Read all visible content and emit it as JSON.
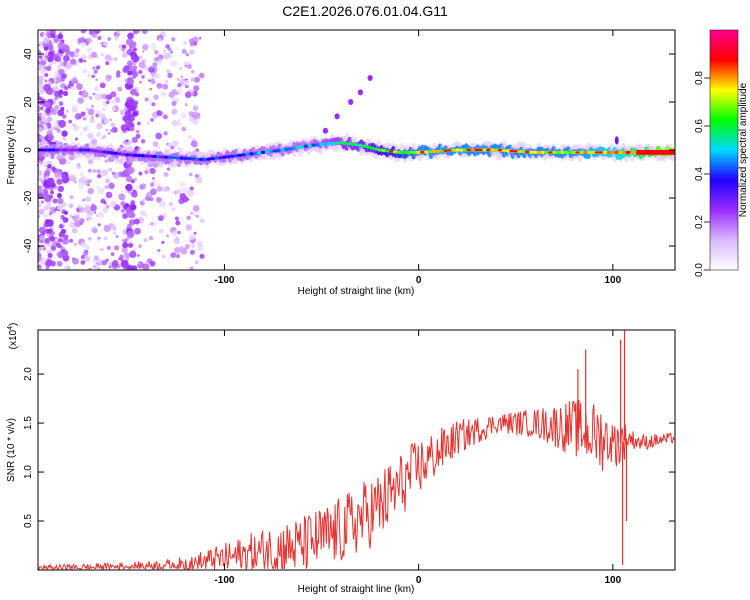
{
  "title": "C2E1.2026.076.01.04.G11",
  "chart_data": [
    {
      "type": "heatmap",
      "name": "spectrogram",
      "xlabel": "Height of straight line (km)",
      "ylabel": "Frequency (Hz)",
      "xlim": [
        -196,
        132
      ],
      "ylim": [
        -50,
        50
      ],
      "xticks": [
        -100,
        0,
        100
      ],
      "yticks": [
        -40,
        -20,
        0,
        20,
        40
      ],
      "colorbar": {
        "label": "Normalized spectral amplitude",
        "range": [
          0.0,
          1.0
        ],
        "ticks": [
          "0.0",
          "0.2",
          "0.4",
          "0.6",
          "0.8"
        ],
        "tick_values": [
          0.0,
          0.2,
          0.4,
          0.6,
          0.8
        ],
        "colors": [
          "#ffffff",
          "#d9b8ff",
          "#9a2cff",
          "#2200ff",
          "#00d8ff",
          "#00ff00",
          "#ffff00",
          "#ff0000",
          "#ff0090"
        ]
      },
      "ridge": {
        "x": [
          -190,
          -170,
          -150,
          -130,
          -110,
          -90,
          -70,
          -55,
          -40,
          -30,
          -20,
          -10,
          0,
          20,
          40,
          60,
          80,
          100,
          115,
          132
        ],
        "freq": [
          0,
          0,
          -2,
          -3,
          -4,
          -2,
          0,
          2,
          3,
          2,
          0,
          -1,
          -1,
          0,
          0,
          -1,
          -1,
          -1,
          -1,
          -1
        ],
        "amplitude": [
          0.3,
          0.3,
          0.3,
          0.35,
          0.35,
          0.4,
          0.45,
          0.45,
          0.5,
          0.55,
          0.6,
          0.65,
          0.7,
          0.7,
          0.7,
          0.7,
          0.7,
          0.75,
          0.85,
          0.95
        ]
      },
      "harmonic": {
        "x": [
          -48,
          -42,
          -35,
          -30,
          -25
        ],
        "freq": [
          8,
          14,
          20,
          24,
          30
        ]
      }
    },
    {
      "type": "line",
      "name": "snr",
      "xlabel": "Height of straight line (km)",
      "ylabel": "SNR (10 * v/v)",
      "scale_label": "(x10",
      "scale_exp": "4",
      "scale_close": ")",
      "xlim": [
        -196,
        132
      ],
      "ylim": [
        0,
        2.45
      ],
      "xticks": [
        -100,
        0,
        100
      ],
      "yticks": [
        0.5,
        1.0,
        1.5,
        2.0
      ],
      "color": "#e8322f",
      "trend": {
        "x": [
          -196,
          -160,
          -120,
          -100,
          -80,
          -60,
          -40,
          -20,
          0,
          20,
          40,
          60,
          80,
          95,
          100,
          104,
          108,
          115,
          132
        ],
        "y": [
          0.02,
          0.03,
          0.06,
          0.12,
          0.18,
          0.25,
          0.4,
          0.65,
          1.05,
          1.35,
          1.5,
          1.5,
          1.45,
          1.35,
          1.3,
          1.3,
          1.35,
          1.3,
          1.35
        ]
      },
      "noise": {
        "x": [
          -196,
          -130,
          -100,
          -80,
          -60,
          -40,
          -20,
          0,
          20,
          40,
          60,
          80,
          95,
          100,
          104,
          108,
          132
        ],
        "y": [
          0.03,
          0.05,
          0.15,
          0.25,
          0.3,
          0.35,
          0.38,
          0.3,
          0.18,
          0.1,
          0.15,
          0.3,
          0.35,
          0.2,
          0.3,
          0.1,
          0.05
        ]
      },
      "spikes": [
        {
          "x": 82,
          "y": 2.05
        },
        {
          "x": 86,
          "y": 2.25
        },
        {
          "x": 104,
          "y": 2.35
        },
        {
          "x": 105,
          "y": 0.05
        },
        {
          "x": 106,
          "y": 2.48
        },
        {
          "x": 107,
          "y": 0.5
        }
      ]
    }
  ]
}
